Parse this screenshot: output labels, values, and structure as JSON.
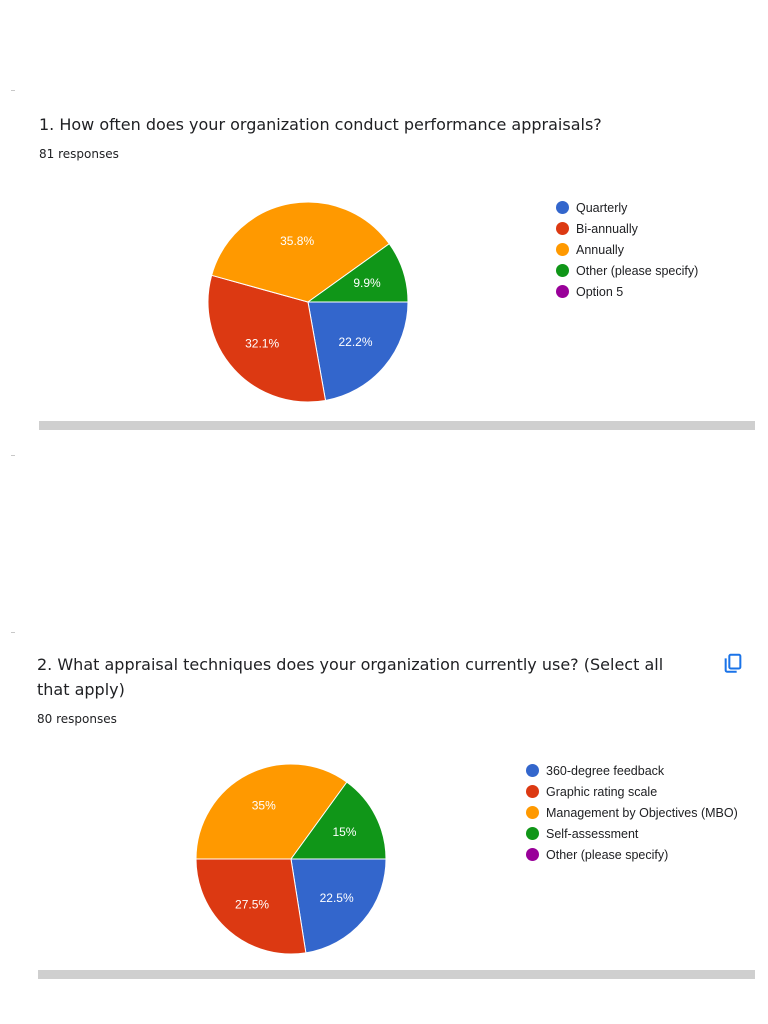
{
  "questions": [
    {
      "title": "1. How often does your organization conduct performance appraisals?",
      "responses": "81 responses",
      "has_copy_button": false
    },
    {
      "title": "2. What appraisal techniques does your organization currently use? (Select all that apply)",
      "responses": "80 responses",
      "has_copy_button": true
    }
  ],
  "chart_data": [
    {
      "type": "pie",
      "title": "1. How often does your organization conduct performance appraisals?",
      "start_angle_deg": 0,
      "slices": [
        {
          "label": "Quarterly",
          "value": 22.2,
          "display": "22.2%",
          "color": "#3366cc"
        },
        {
          "label": "Bi-annually",
          "value": 32.1,
          "display": "32.1%",
          "color": "#dc3912"
        },
        {
          "label": "Annually",
          "value": 35.8,
          "display": "35.8%",
          "color": "#ff9900"
        },
        {
          "label": "Other (please specify)",
          "value": 9.9,
          "display": "9.9%",
          "color": "#109618"
        },
        {
          "label": "Option 5",
          "value": 0,
          "display": "",
          "color": "#990099"
        }
      ],
      "legend_position": "right"
    },
    {
      "type": "pie",
      "title": "2. What appraisal techniques does your organization currently use? (Select all that apply)",
      "start_angle_deg": 0,
      "slices": [
        {
          "label": "360-degree feedback",
          "value": 22.5,
          "display": "22.5%",
          "color": "#3366cc"
        },
        {
          "label": "Graphic rating scale",
          "value": 27.5,
          "display": "27.5%",
          "color": "#dc3912"
        },
        {
          "label": "Management by Objectives (MBO)",
          "value": 35,
          "display": "35%",
          "color": "#ff9900"
        },
        {
          "label": "Self-assessment",
          "value": 15,
          "display": "15%",
          "color": "#109618"
        },
        {
          "label": "Other (please specify)",
          "value": 0,
          "display": "",
          "color": "#990099"
        }
      ],
      "legend_position": "right"
    }
  ],
  "icons": {
    "copy": "copy-icon"
  },
  "colors": {
    "accent": "#1a73e8",
    "divider": "#cfcfcf"
  }
}
